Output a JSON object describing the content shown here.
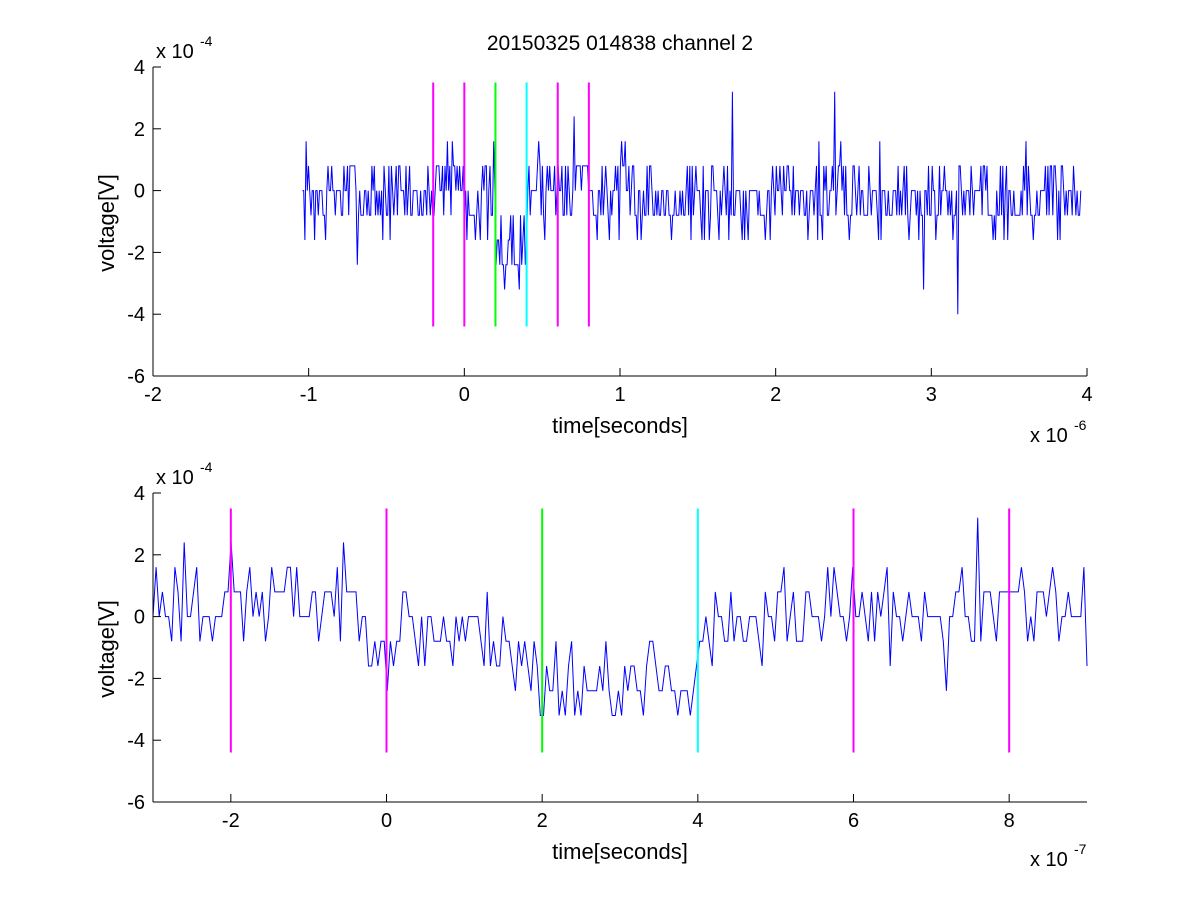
{
  "chart_data": [
    {
      "type": "line",
      "title": "20150325 014838 channel 2",
      "xlabel": "time[seconds]",
      "ylabel": "voltage[V]",
      "x_exponent_label": "x 10",
      "x_exponent": "-6",
      "y_exponent_label": "x 10",
      "y_exponent": "-4",
      "xlim": [
        -2,
        4
      ],
      "ylim": [
        -6,
        4
      ],
      "x_ticks": [
        "-2",
        "-1",
        "0",
        "1",
        "2",
        "3",
        "4"
      ],
      "y_ticks": [
        "-6",
        "-4",
        "-2",
        "0",
        "2",
        "4"
      ],
      "grid": false,
      "signal": {
        "color": "#0000ff",
        "x_start": -1.04,
        "x_end": 3.96,
        "n_points": 640,
        "levels": [
          -3.2,
          -2.4,
          -1.6,
          -0.8,
          0,
          0.8,
          1.6,
          2.4,
          3.2
        ],
        "segments": [
          {
            "x": [
              -1.04,
              -0.2
            ],
            "mean": -0.2
          },
          {
            "x": [
              -0.2,
              0.0
            ],
            "mean": 0.4
          },
          {
            "x": [
              0.0,
              0.2
            ],
            "mean": -0.4
          },
          {
            "x": [
              0.2,
              0.4
            ],
            "mean": -1.9
          },
          {
            "x": [
              0.4,
              0.6
            ],
            "mean": 0.2
          },
          {
            "x": [
              0.6,
              0.8
            ],
            "mean": 0.5
          },
          {
            "x": [
              0.8,
              3.96
            ],
            "mean": -0.2
          }
        ],
        "noise": 0.9,
        "extremes": [
          {
            "x": 1.72,
            "y": 3.2
          },
          {
            "x": 2.38,
            "y": 3.2
          },
          {
            "x": 3.17,
            "y": -4.0
          },
          {
            "x": 2.95,
            "y": -3.2
          }
        ]
      },
      "markers": [
        {
          "x": -0.2,
          "color": "#ff00ff"
        },
        {
          "x": 0.0,
          "color": "#ff00ff"
        },
        {
          "x": 0.2,
          "color": "#00ff00"
        },
        {
          "x": 0.4,
          "color": "#00ffff"
        },
        {
          "x": 0.6,
          "color": "#ff00ff"
        },
        {
          "x": 0.8,
          "color": "#ff00ff"
        }
      ],
      "marker_range": [
        -4.4,
        3.5
      ]
    },
    {
      "type": "line",
      "xlabel": "time[seconds]",
      "ylabel": "voltage[V]",
      "x_exponent_label": "x 10",
      "x_exponent": "-7",
      "y_exponent_label": "x 10",
      "y_exponent": "-4",
      "xlim": [
        -3,
        9
      ],
      "ylim": [
        -6,
        4
      ],
      "x_ticks": [
        "-2",
        "0",
        "2",
        "4",
        "6",
        "8"
      ],
      "x_tick_values": [
        -2,
        0,
        2,
        4,
        6,
        8
      ],
      "y_ticks": [
        "-6",
        "-4",
        "-2",
        "0",
        "2",
        "4"
      ],
      "grid": false,
      "signal": {
        "color": "#0000ff",
        "x_start": -3.0,
        "x_end": 9.0,
        "n_points": 300,
        "levels": [
          -3.2,
          -2.4,
          -1.6,
          -0.8,
          0,
          0.8,
          1.6,
          2.4,
          3.2
        ],
        "segments": [
          {
            "x": [
              -3.0,
              -0.2
            ],
            "mean": 0.5
          },
          {
            "x": [
              -0.2,
              1.6
            ],
            "mean": -0.5
          },
          {
            "x": [
              1.6,
              2.2
            ],
            "mean": -1.6
          },
          {
            "x": [
              2.2,
              4.0
            ],
            "mean": -2.2
          },
          {
            "x": [
              4.0,
              5.0
            ],
            "mean": -0.6
          },
          {
            "x": [
              5.0,
              9.0
            ],
            "mean": 0.2
          }
        ],
        "noise": 0.9,
        "extremes": [
          {
            "x": 7.6,
            "y": 3.2
          },
          {
            "x": -2.6,
            "y": 2.4
          },
          {
            "x": 0.0,
            "y": -2.4
          },
          {
            "x": 2.0,
            "y": -3.2
          },
          {
            "x": 7.2,
            "y": -2.4
          }
        ]
      },
      "markers": [
        {
          "x": -2,
          "color": "#ff00ff"
        },
        {
          "x": 0,
          "color": "#ff00ff"
        },
        {
          "x": 2,
          "color": "#00ff00"
        },
        {
          "x": 4,
          "color": "#00ffff"
        },
        {
          "x": 6,
          "color": "#ff00ff"
        },
        {
          "x": 8,
          "color": "#ff00ff"
        }
      ],
      "marker_range": [
        -4.4,
        3.5
      ]
    }
  ]
}
